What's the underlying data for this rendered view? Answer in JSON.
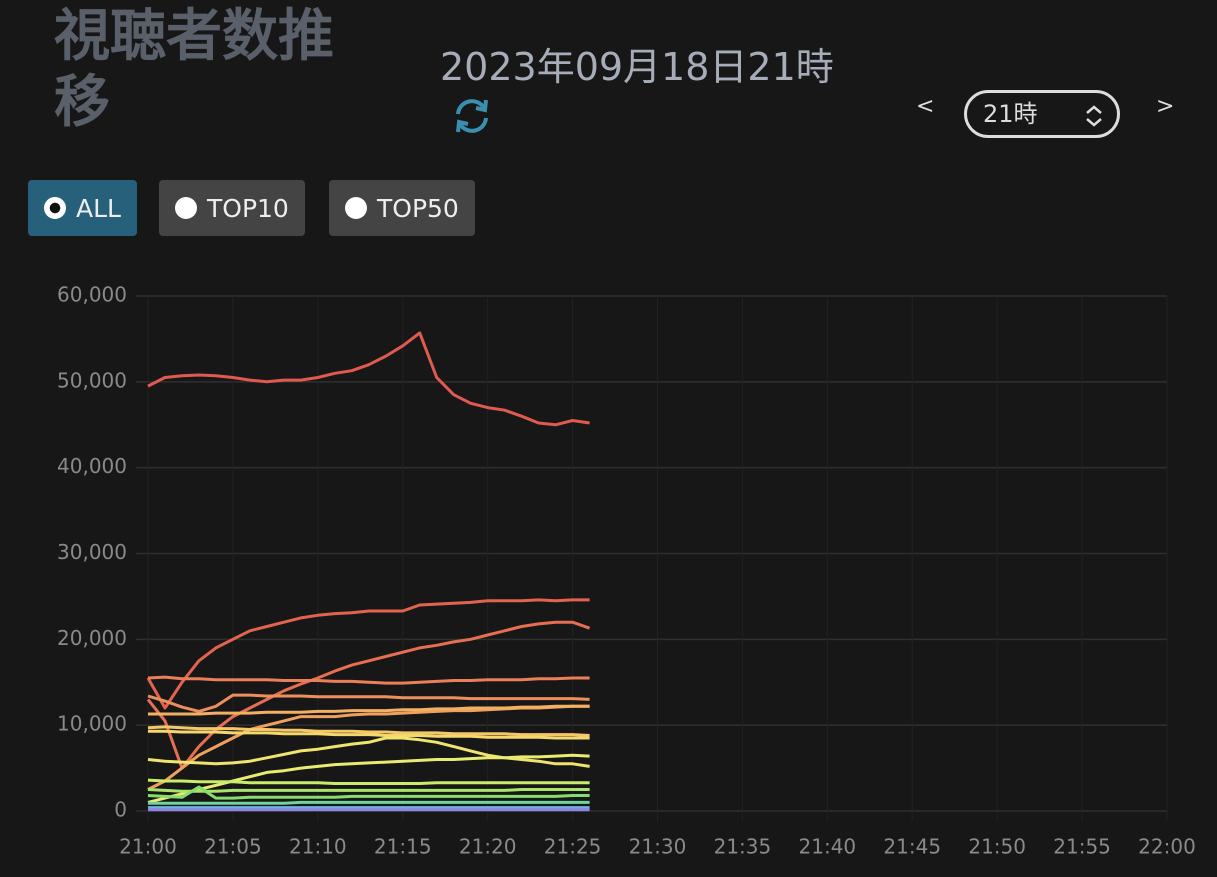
{
  "header": {
    "title": "視聴者数推移",
    "datetime": "2023年09月18日21時",
    "prev": "<",
    "hour_select": "21時",
    "next": ">"
  },
  "filters": [
    {
      "label": "ALL",
      "selected": true
    },
    {
      "label": "TOP10",
      "selected": false
    },
    {
      "label": "TOP50",
      "selected": false
    }
  ],
  "chart_data": {
    "type": "line",
    "x": [
      "21:00",
      "21:01",
      "21:02",
      "21:03",
      "21:04",
      "21:05",
      "21:06",
      "21:07",
      "21:08",
      "21:09",
      "21:10",
      "21:11",
      "21:12",
      "21:13",
      "21:14",
      "21:15",
      "21:16",
      "21:17",
      "21:18",
      "21:19",
      "21:20",
      "21:21",
      "21:22",
      "21:23",
      "21:24",
      "21:25",
      "21:26"
    ],
    "xlim": [
      "21:00",
      "22:00"
    ],
    "xticks": [
      "21:00",
      "21:05",
      "21:10",
      "21:15",
      "21:20",
      "21:25",
      "21:30",
      "21:35",
      "21:40",
      "21:45",
      "21:50",
      "21:55",
      "22:00"
    ],
    "ylim": [
      0,
      60000
    ],
    "yticks": [
      0,
      {
        "value": 10000,
        "label": "10,000"
      },
      {
        "value": 20000,
        "label": "20,000"
      },
      {
        "value": 30000,
        "label": "30,000"
      },
      {
        "value": 40000,
        "label": "40,000"
      },
      {
        "value": 50000,
        "label": "50,000"
      },
      {
        "value": 60000,
        "label": "60,000"
      }
    ],
    "grid": true,
    "series": [
      {
        "color": "#e05a4f",
        "values": [
          49500,
          50500,
          50700,
          50800,
          50700,
          50500,
          50200,
          50000,
          50200,
          50200,
          50500,
          51000,
          51300,
          52000,
          53000,
          54200,
          55700,
          50500,
          48500,
          47500,
          47000,
          46700,
          46000,
          45200,
          45000,
          45500,
          45200
        ]
      },
      {
        "color": "#e3634f",
        "values": [
          15500,
          12000,
          15000,
          17500,
          19000,
          20000,
          21000,
          21500,
          22000,
          22500,
          22800,
          23000,
          23100,
          23300,
          23300,
          23300,
          24000,
          24100,
          24200,
          24300,
          24500,
          24500,
          24500,
          24600,
          24500,
          24600,
          24600
        ]
      },
      {
        "color": "#e66f52",
        "values": [
          13000,
          10500,
          5000,
          7500,
          9500,
          11000,
          12000,
          13000,
          14000,
          14800,
          15500,
          16300,
          17000,
          17500,
          18000,
          18500,
          19000,
          19300,
          19700,
          20000,
          20500,
          21000,
          21500,
          21800,
          22000,
          22000,
          21300
        ]
      },
      {
        "color": "#ea7f58",
        "values": [
          15500,
          15600,
          15400,
          15400,
          15300,
          15300,
          15300,
          15300,
          15200,
          15200,
          15200,
          15100,
          15100,
          15000,
          14900,
          14900,
          15000,
          15100,
          15200,
          15200,
          15300,
          15300,
          15300,
          15400,
          15400,
          15500,
          15500
        ]
      },
      {
        "color": "#ec8f5c",
        "values": [
          13400,
          12800,
          12100,
          11600,
          12200,
          13500,
          13500,
          13400,
          13400,
          13400,
          13300,
          13300,
          13300,
          13300,
          13300,
          13200,
          13200,
          13200,
          13200,
          13100,
          13100,
          13100,
          13100,
          13100,
          13100,
          13100,
          13000
        ]
      },
      {
        "color": "#f0a05e",
        "values": [
          2500,
          3500,
          5000,
          6500,
          7500,
          8500,
          9500,
          10000,
          10500,
          11000,
          11000,
          11000,
          11200,
          11300,
          11300,
          11400,
          11500,
          11600,
          11700,
          11700,
          11800,
          11900,
          12000,
          12000,
          12100,
          12200,
          12200
        ]
      },
      {
        "color": "#f2b062",
        "values": [
          11300,
          11300,
          11300,
          11300,
          11400,
          11400,
          11400,
          11500,
          11500,
          11500,
          11600,
          11600,
          11700,
          11700,
          11700,
          11800,
          11800,
          11900,
          11900,
          12000,
          12000,
          12000,
          12100,
          12100,
          12200,
          12200,
          12200
        ]
      },
      {
        "color": "#f5c768",
        "values": [
          9700,
          9800,
          9700,
          9600,
          9600,
          9600,
          9500,
          9500,
          9400,
          9400,
          9300,
          9300,
          9300,
          9200,
          9200,
          9100,
          9100,
          9100,
          9000,
          9000,
          9000,
          9000,
          8900,
          8900,
          8900,
          8900,
          8800
        ]
      },
      {
        "color": "#f4d86c",
        "values": [
          9300,
          9300,
          9200,
          9200,
          9200,
          9100,
          9100,
          9100,
          9000,
          9000,
          9000,
          8900,
          8900,
          8900,
          8800,
          8800,
          8800,
          8700,
          8700,
          8700,
          8600,
          8600,
          8600,
          8600,
          8500,
          8500,
          8500
        ]
      },
      {
        "color": "#eee46e",
        "values": [
          6000,
          5800,
          5700,
          5600,
          5500,
          5600,
          5800,
          6200,
          6600,
          7000,
          7200,
          7500,
          7800,
          8000,
          8500,
          8500,
          8300,
          8000,
          7500,
          7000,
          6500,
          6200,
          6000,
          5800,
          5500,
          5500,
          5200
        ]
      },
      {
        "color": "#e8ec70",
        "values": [
          1000,
          1500,
          2000,
          2500,
          3000,
          3500,
          4000,
          4500,
          4700,
          5000,
          5200,
          5400,
          5500,
          5600,
          5700,
          5800,
          5900,
          6000,
          6000,
          6100,
          6200,
          6200,
          6300,
          6300,
          6400,
          6500,
          6400
        ]
      },
      {
        "color": "#c9ec6a",
        "values": [
          3600,
          3500,
          3500,
          3400,
          3400,
          3400,
          3300,
          3300,
          3300,
          3300,
          3300,
          3200,
          3200,
          3200,
          3200,
          3200,
          3200,
          3300,
          3300,
          3300,
          3300,
          3300,
          3300,
          3300,
          3300,
          3300,
          3300
        ]
      },
      {
        "color": "#a8e469",
        "values": [
          2500,
          2400,
          2300,
          2300,
          2300,
          2400,
          2400,
          2400,
          2400,
          2400,
          2400,
          2400,
          2400,
          2400,
          2400,
          2400,
          2400,
          2400,
          2400,
          2400,
          2400,
          2400,
          2500,
          2500,
          2500,
          2500,
          2500
        ]
      },
      {
        "color": "#86dc6e",
        "values": [
          1800,
          1700,
          1600,
          2800,
          1500,
          1500,
          1600,
          1600,
          1600,
          1600,
          1600,
          1600,
          1700,
          1700,
          1700,
          1700,
          1700,
          1700,
          1700,
          1700,
          1700,
          1700,
          1700,
          1700,
          1700,
          1800,
          1800
        ]
      },
      {
        "color": "#6ed49a",
        "values": [
          900,
          900,
          900,
          900,
          900,
          900,
          900,
          900,
          900,
          1000,
          1000,
          1000,
          1000,
          1000,
          1000,
          1000,
          1000,
          1000,
          1000,
          1000,
          1000,
          1000,
          1000,
          1000,
          1000,
          1000,
          1000
        ]
      },
      {
        "color": "#72b0e0",
        "values": [
          400,
          400,
          400,
          400,
          400,
          400,
          400,
          400,
          400,
          400,
          400,
          400,
          400,
          400,
          400,
          400,
          400,
          400,
          400,
          400,
          400,
          400,
          400,
          400,
          400,
          400,
          400
        ]
      },
      {
        "color": "#8c86e0",
        "values": [
          150,
          150,
          150,
          150,
          150,
          150,
          150,
          150,
          150,
          150,
          150,
          150,
          150,
          150,
          150,
          150,
          150,
          150,
          150,
          150,
          150,
          150,
          150,
          150,
          150,
          150,
          150
        ]
      }
    ]
  }
}
